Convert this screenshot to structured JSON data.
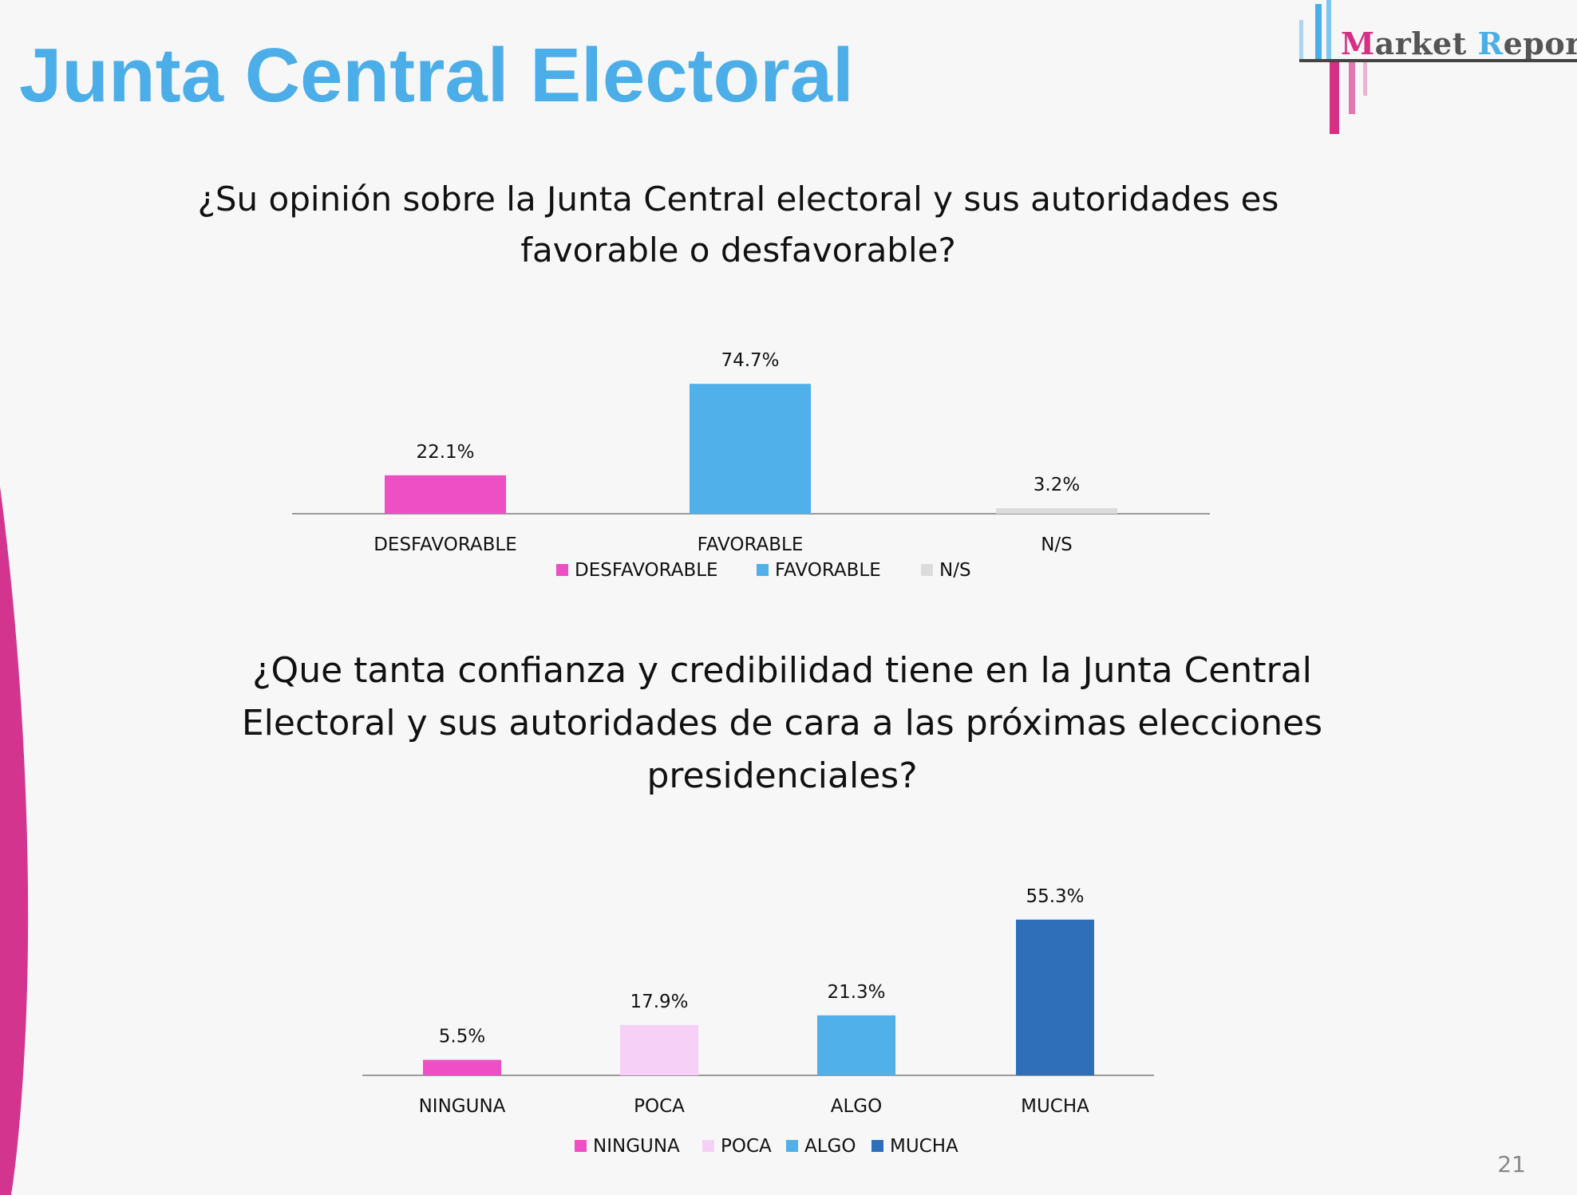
{
  "page": {
    "title": "Junta Central Electoral",
    "number": "21",
    "colors": {
      "title": "#4baee8",
      "accent": "#d62f86",
      "background": "#f7f7f7"
    }
  },
  "logo": {
    "name": "Market Report",
    "first_initial": "M",
    "first_rest": "arket",
    "second_initial": "R",
    "second_rest": "eport"
  },
  "questions": {
    "q1": "¿Su opinión sobre la Junta Central electoral y sus autoridades es favorable o desfavorable?",
    "q2": "¿Que tanta confianza y credibilidad tiene en la Junta Central Electoral y sus autoridades de cara a las próximas elecciones presidenciales?"
  },
  "chart_data": [
    {
      "type": "bar",
      "title": "¿Su opinión sobre la Junta Central electoral y sus autoridades es favorable o desfavorable?",
      "categories": [
        "DESFAVORABLE",
        "FAVORABLE",
        "N/S"
      ],
      "values": [
        22.1,
        74.7,
        3.2
      ],
      "labels": [
        "22.1%",
        "74.7%",
        "3.2%"
      ],
      "colors": [
        "#ee4fc4",
        "#4fb0ea",
        "#dcdcdc"
      ],
      "legend": [
        "DESFAVORABLE",
        "FAVORABLE",
        "N/S"
      ],
      "legend_position": "bottom",
      "xlabel": "",
      "ylabel": "",
      "ylim": [
        0,
        100
      ],
      "grid": false
    },
    {
      "type": "bar",
      "title": "¿Que tanta confianza y credibilidad tiene en la Junta Central Electoral y sus autoridades de cara a las próximas elecciones presidenciales?",
      "categories": [
        "NINGUNA",
        "POCA",
        "ALGO",
        "MUCHA"
      ],
      "values": [
        5.5,
        17.9,
        21.3,
        55.3
      ],
      "labels": [
        "5.5%",
        "17.9%",
        "21.3%",
        "55.3%"
      ],
      "colors": [
        "#ee4fc4",
        "#f6d0f6",
        "#4fb0ea",
        "#2f6fba"
      ],
      "legend": [
        "NINGUNA",
        "POCA",
        "ALGO",
        "MUCHA"
      ],
      "legend_position": "bottom",
      "xlabel": "",
      "ylabel": "",
      "ylim": [
        0,
        100
      ],
      "grid": false
    }
  ]
}
